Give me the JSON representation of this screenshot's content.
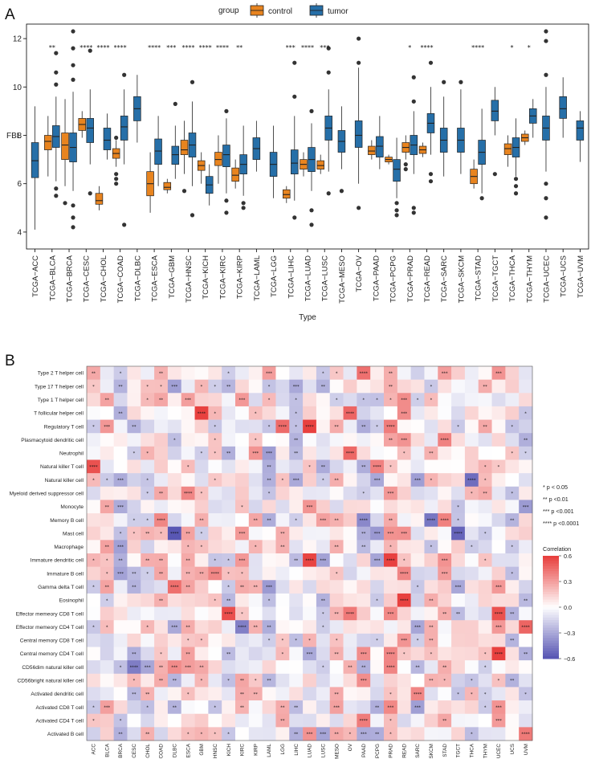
{
  "figure": {
    "panel_a_label": "A",
    "panel_b_label": "B"
  },
  "colors": {
    "control": "#e8841f",
    "tumor": "#266fa8",
    "outlier": "#333333",
    "heat_high": "#e8413f",
    "heat_mid": "#ffffff",
    "heat_low": "#5957b4"
  },
  "chart_data": [
    {
      "type": "boxplot",
      "title": "",
      "legend": {
        "title": "group",
        "entries": [
          "control",
          "tumor"
        ],
        "position": "top"
      },
      "xlabel": "Type",
      "ylabel": "FBL",
      "ylim": [
        3.3,
        12.6
      ],
      "yticks": [
        4,
        6,
        8,
        10,
        12
      ],
      "categories": [
        "TCGA−ACC",
        "TCGA−BLCA",
        "TCGA−BRCA",
        "TCGA−CESC",
        "TCGA−CHOL",
        "TCGA−COAD",
        "TCGA−DLBC",
        "TCGA−ESCA",
        "TCGA−GBM",
        "TCGA−HNSC",
        "TCGA−KICH",
        "TCGA−KIRC",
        "TCGA−KIRP",
        "TCGA−LAML",
        "TCGA−LGG",
        "TCGA−LIHC",
        "TCGA−LUAD",
        "TCGA−LUSC",
        "TCGA−MESO",
        "TCGA−OV",
        "TCGA−PAAD",
        "TCGA−PCPG",
        "TCGA−PRAD",
        "TCGA−READ",
        "TCGA−SARC",
        "TCGA−SKCM",
        "TCGA−STAD",
        "TCGA−TGCT",
        "TCGA−THCA",
        "TCGA−THYM",
        "TCGA−UCEC",
        "TCGA−UCS",
        "TCGA−UVM"
      ],
      "significance": [
        "",
        "**",
        "",
        "****",
        "****",
        "****",
        "",
        "****",
        "***",
        "****",
        "****",
        "****",
        "**",
        "",
        "",
        "***",
        "****",
        "***",
        "",
        "",
        "",
        "",
        "*",
        "****",
        "",
        "",
        "****",
        "",
        "*",
        "*",
        "",
        "",
        ""
      ],
      "series": [
        {
          "name": "control",
          "boxes": [
            null,
            {
              "min": 6.3,
              "q1": 7.4,
              "median": 7.75,
              "q3": 8.0,
              "max": 8.8,
              "outliers": []
            },
            {
              "min": 5.9,
              "q1": 7.0,
              "median": 7.6,
              "q3": 8.1,
              "max": 9.5,
              "outliers": [
                5.2
              ]
            },
            {
              "min": 7.9,
              "q1": 8.2,
              "median": 8.45,
              "q3": 8.7,
              "max": 9.0,
              "outliers": []
            },
            {
              "min": 4.9,
              "q1": 5.15,
              "median": 5.3,
              "q3": 5.6,
              "max": 5.9,
              "outliers": []
            },
            {
              "min": 6.7,
              "q1": 7.05,
              "median": 7.25,
              "q3": 7.45,
              "max": 7.8,
              "outliers": [
                6.2,
                6.0,
                6.4,
                7.9
              ]
            },
            null,
            {
              "min": 4.8,
              "q1": 5.5,
              "median": 6.0,
              "q3": 6.5,
              "max": 7.3,
              "outliers": []
            },
            {
              "min": 5.6,
              "q1": 5.75,
              "median": 5.85,
              "q3": 6.05,
              "max": 6.2,
              "outliers": []
            },
            {
              "min": 6.4,
              "q1": 7.2,
              "median": 7.4,
              "q3": 7.8,
              "max": 8.6,
              "outliers": [
                5.7
              ]
            },
            {
              "min": 6.0,
              "q1": 6.55,
              "median": 6.75,
              "q3": 6.95,
              "max": 7.3,
              "outliers": []
            },
            {
              "min": 6.0,
              "q1": 6.75,
              "median": 7.0,
              "q3": 7.3,
              "max": 8.0,
              "outliers": []
            },
            {
              "min": 5.8,
              "q1": 6.1,
              "median": 6.35,
              "q3": 6.65,
              "max": 7.0,
              "outliers": []
            },
            null,
            null,
            {
              "min": 5.2,
              "q1": 5.4,
              "median": 5.55,
              "q3": 5.75,
              "max": 5.9,
              "outliers": []
            },
            {
              "min": 6.3,
              "q1": 6.6,
              "median": 6.8,
              "q3": 7.0,
              "max": 7.3,
              "outliers": []
            },
            {
              "min": 6.4,
              "q1": 6.6,
              "median": 6.75,
              "q3": 6.95,
              "max": 7.2,
              "outliers": []
            },
            null,
            null,
            {
              "min": 7.0,
              "q1": 7.2,
              "median": 7.35,
              "q3": 7.55,
              "max": 7.8,
              "outliers": []
            },
            {
              "min": 6.8,
              "q1": 6.9,
              "median": 7.0,
              "q3": 7.1,
              "max": 7.2,
              "outliers": []
            },
            {
              "min": 7.0,
              "q1": 7.3,
              "median": 7.5,
              "q3": 7.7,
              "max": 8.0,
              "outliers": [
                6.8,
                6.6
              ]
            },
            {
              "min": 7.1,
              "q1": 7.25,
              "median": 7.4,
              "q3": 7.55,
              "max": 7.7,
              "outliers": []
            },
            null,
            null,
            {
              "min": 5.8,
              "q1": 6.0,
              "median": 6.3,
              "q3": 6.6,
              "max": 7.0,
              "outliers": []
            },
            null,
            {
              "min": 6.7,
              "q1": 7.2,
              "median": 7.45,
              "q3": 7.65,
              "max": 8.0,
              "outliers": []
            },
            {
              "min": 7.6,
              "q1": 7.75,
              "median": 7.9,
              "q3": 8.05,
              "max": 8.2,
              "outliers": []
            },
            null,
            null,
            null
          ]
        },
        {
          "name": "tumor",
          "boxes": [
            {
              "min": 4.1,
              "q1": 6.25,
              "median": 6.95,
              "q3": 7.7,
              "max": 9.2,
              "outliers": []
            },
            {
              "min": 6.1,
              "q1": 7.5,
              "median": 7.95,
              "q3": 8.4,
              "max": 9.6,
              "outliers": [
                5.5,
                5.8,
                10.1,
                10.6,
                11.4
              ]
            },
            {
              "min": 5.7,
              "q1": 6.9,
              "median": 7.5,
              "q3": 8.1,
              "max": 9.8,
              "outliers": [
                4.2,
                4.6,
                5.1,
                10.3,
                10.9,
                11.6,
                12.3
              ]
            },
            {
              "min": 6.8,
              "q1": 7.7,
              "median": 8.3,
              "q3": 8.7,
              "max": 9.9,
              "outliers": [
                5.6,
                11.5
              ]
            },
            {
              "min": 7.0,
              "q1": 7.4,
              "median": 7.8,
              "q3": 8.3,
              "max": 8.9,
              "outliers": []
            },
            {
              "min": 6.8,
              "q1": 7.8,
              "median": 8.35,
              "q3": 8.8,
              "max": 9.9,
              "outliers": [
                4.3,
                10.5
              ]
            },
            {
              "min": 7.7,
              "q1": 8.6,
              "median": 9.1,
              "q3": 9.6,
              "max": 10.5,
              "outliers": []
            },
            {
              "min": 5.9,
              "q1": 6.8,
              "median": 7.35,
              "q3": 7.85,
              "max": 8.8,
              "outliers": []
            },
            {
              "min": 6.2,
              "q1": 6.8,
              "median": 7.2,
              "q3": 7.55,
              "max": 8.4,
              "outliers": [
                9.3
              ]
            },
            {
              "min": 5.9,
              "q1": 7.1,
              "median": 7.6,
              "q3": 8.1,
              "max": 9.4,
              "outliers": [
                4.7,
                10.2
              ]
            },
            {
              "min": 5.1,
              "q1": 5.6,
              "median": 5.95,
              "q3": 6.3,
              "max": 6.8,
              "outliers": []
            },
            {
              "min": 5.6,
              "q1": 6.7,
              "median": 7.2,
              "q3": 7.6,
              "max": 8.7,
              "outliers": [
                4.8,
                5.3,
                9.0
              ]
            },
            {
              "min": 5.5,
              "q1": 6.4,
              "median": 6.8,
              "q3": 7.2,
              "max": 8.4,
              "outliers": [
                5.0,
                5.2
              ]
            },
            {
              "min": 6.5,
              "q1": 7.0,
              "median": 7.45,
              "q3": 7.9,
              "max": 8.6,
              "outliers": []
            },
            {
              "min": 5.4,
              "q1": 6.3,
              "median": 6.8,
              "q3": 7.3,
              "max": 8.4,
              "outliers": []
            },
            {
              "min": 5.3,
              "q1": 6.4,
              "median": 6.85,
              "q3": 7.4,
              "max": 8.8,
              "outliers": [
                4.6,
                9.6,
                11.0
              ]
            },
            {
              "min": 5.7,
              "q1": 6.5,
              "median": 7.0,
              "q3": 7.5,
              "max": 8.5,
              "outliers": [
                4.3,
                4.9,
                9.0
              ]
            },
            {
              "min": 6.5,
              "q1": 7.8,
              "median": 8.3,
              "q3": 8.8,
              "max": 9.9,
              "outliers": [
                5.6,
                10.6,
                11.6
              ]
            },
            {
              "min": 6.6,
              "q1": 7.3,
              "median": 7.75,
              "q3": 8.2,
              "max": 9.2,
              "outliers": [
                5.7
              ]
            },
            {
              "min": 6.0,
              "q1": 7.5,
              "median": 8.0,
              "q3": 8.6,
              "max": 10.8,
              "outliers": [
                5.0,
                11.0,
                12.0
              ]
            },
            {
              "min": 6.6,
              "q1": 7.1,
              "median": 7.55,
              "q3": 7.95,
              "max": 8.8,
              "outliers": []
            },
            {
              "min": 5.4,
              "q1": 6.1,
              "median": 6.6,
              "q3": 7.0,
              "max": 7.9,
              "outliers": [
                4.7,
                4.9,
                5.2
              ]
            },
            {
              "min": 6.4,
              "q1": 7.2,
              "median": 7.6,
              "q3": 8.0,
              "max": 9.0,
              "outliers": [
                5.0,
                4.8,
                9.4,
                10.4
              ]
            },
            {
              "min": 7.2,
              "q1": 8.1,
              "median": 8.5,
              "q3": 8.9,
              "max": 10.0,
              "outliers": [
                6.1,
                6.4,
                11.0
              ]
            },
            {
              "min": 6.3,
              "q1": 7.3,
              "median": 7.8,
              "q3": 8.3,
              "max": 9.6,
              "outliers": [
                10.2
              ]
            },
            {
              "min": 6.4,
              "q1": 7.3,
              "median": 7.8,
              "q3": 8.3,
              "max": 9.9,
              "outliers": [
                10.2
              ]
            },
            {
              "min": 5.6,
              "q1": 6.8,
              "median": 7.3,
              "q3": 7.8,
              "max": 9.1,
              "outliers": [
                5.4
              ]
            },
            {
              "min": 8.0,
              "q1": 8.6,
              "median": 9.0,
              "q3": 9.45,
              "max": 10.0,
              "outliers": [
                6.4
              ]
            },
            {
              "min": 6.3,
              "q1": 7.1,
              "median": 7.5,
              "q3": 7.9,
              "max": 8.7,
              "outliers": [
                5.6,
                5.9,
                6.2
              ]
            },
            {
              "min": 7.9,
              "q1": 8.5,
              "median": 8.8,
              "q3": 9.1,
              "max": 9.5,
              "outliers": []
            },
            {
              "min": 6.5,
              "q1": 7.8,
              "median": 8.3,
              "q3": 8.8,
              "max": 10.0,
              "outliers": [
                4.6,
                5.4,
                6.0,
                10.5,
                11.9,
                12.3
              ]
            },
            {
              "min": 7.9,
              "q1": 8.7,
              "median": 9.1,
              "q3": 9.6,
              "max": 10.4,
              "outliers": []
            },
            {
              "min": 6.9,
              "q1": 7.8,
              "median": 8.3,
              "q3": 8.6,
              "max": 9.0,
              "outliers": []
            }
          ]
        }
      ]
    },
    {
      "type": "heatmap",
      "title": "",
      "columns": [
        "ACC",
        "BLCA",
        "BRCA",
        "CESC",
        "CHOL",
        "COAD",
        "DLBC",
        "ESCA",
        "GBM",
        "HNSC",
        "KICH",
        "KIRC",
        "KIRP",
        "LAML",
        "LGG",
        "LIHC",
        "LUAD",
        "LUSC",
        "MESO",
        "OV",
        "PAAD",
        "PCPG",
        "PRAD",
        "READ",
        "SARC",
        "SKCM",
        "STAD",
        "TGCT",
        "THCA",
        "THYM",
        "UCEC",
        "UCS",
        "UVM"
      ],
      "rows": [
        "Type 2 T helper cell",
        "Type 17 T helper cell",
        "Type 1 T helper cell",
        "T follicular helper cell",
        "Regulatory T cell",
        "Plasmacytoid dendritic cell",
        "Neutrophil",
        "Natural killer T cell",
        "Natural killer cell",
        "Myeloid derived suppressor cell",
        "Monocyte",
        "Memory B cell",
        "Mast cell",
        "Macrophage",
        "Immature dendritic cell",
        "Immature  B cell",
        "Gamma delta T cell",
        "Eosinophil",
        "Effector memeory CD8 T cell",
        "Effector memeory CD4 T cell",
        "Central memory CD8 T cell",
        "Central memory CD4 T cell",
        "CD56dim natural killer cell",
        "CD56bright natural killer cell",
        "Activated dendritic cell",
        "Activated CD8 T cell",
        "Activated CD4 T cell",
        "Activated B cell"
      ],
      "colorbar": {
        "title": "Correlation",
        "range": [
          -0.6,
          0.6
        ],
        "ticks": [
          "0.6",
          "0.3",
          "0.0",
          "−0.3",
          "−0.6"
        ]
      },
      "significance_legend": [
        "* p < 0.05",
        "** p <0.01",
        "*** p <0.001",
        "**** p <0.0001"
      ],
      "seed": 7
    }
  ]
}
